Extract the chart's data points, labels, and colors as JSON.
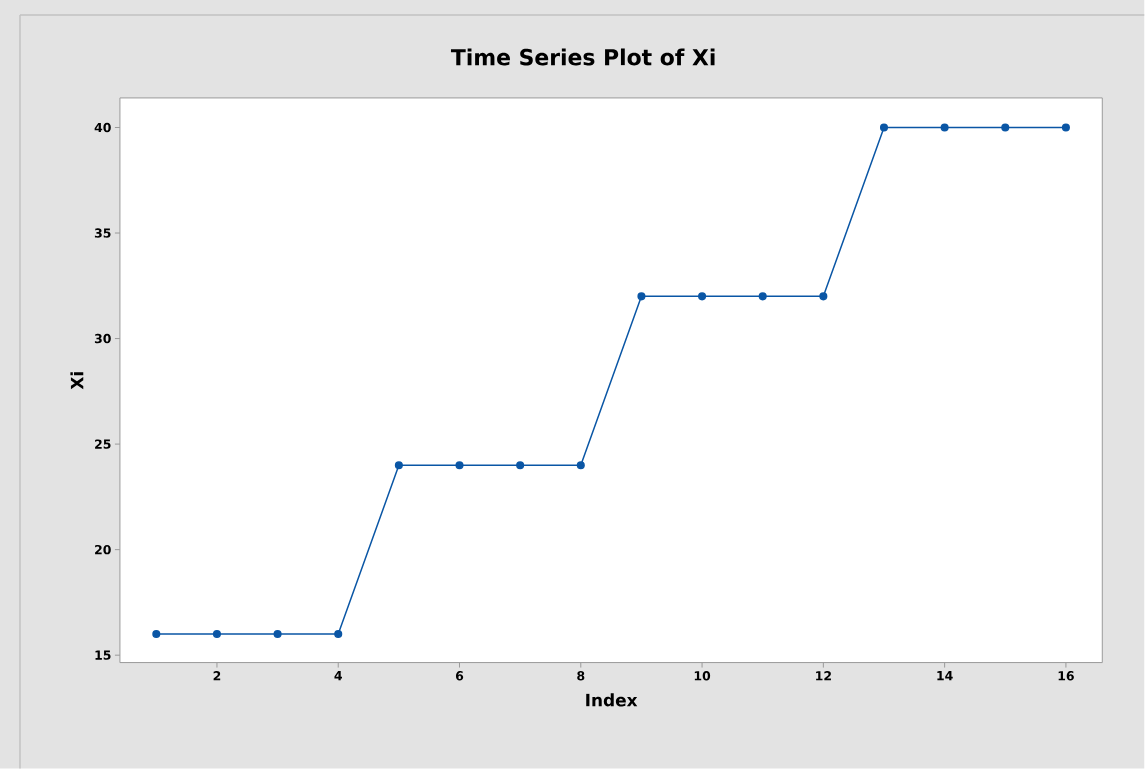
{
  "chart_data": {
    "type": "line",
    "title": "Time Series Plot of Xi",
    "xlabel": "Index",
    "ylabel": "Xi",
    "x": [
      1,
      2,
      3,
      4,
      5,
      6,
      7,
      8,
      9,
      10,
      11,
      12,
      13,
      14,
      15,
      16
    ],
    "series": [
      {
        "color": "#0a56a5",
        "values": [
          16,
          16,
          16,
          16,
          24,
          24,
          24,
          24,
          32,
          32,
          32,
          32,
          40,
          40,
          40,
          40
        ]
      }
    ],
    "xlim": [
      0.4,
      16.6
    ],
    "xticks": [
      2,
      4,
      6,
      8,
      10,
      12,
      14,
      16
    ],
    "ylim": [
      14.65,
      41.4
    ],
    "yticks": [
      15,
      20,
      25,
      30,
      35,
      40
    ],
    "marker": "circle",
    "line_style": "solid",
    "grid": false
  }
}
